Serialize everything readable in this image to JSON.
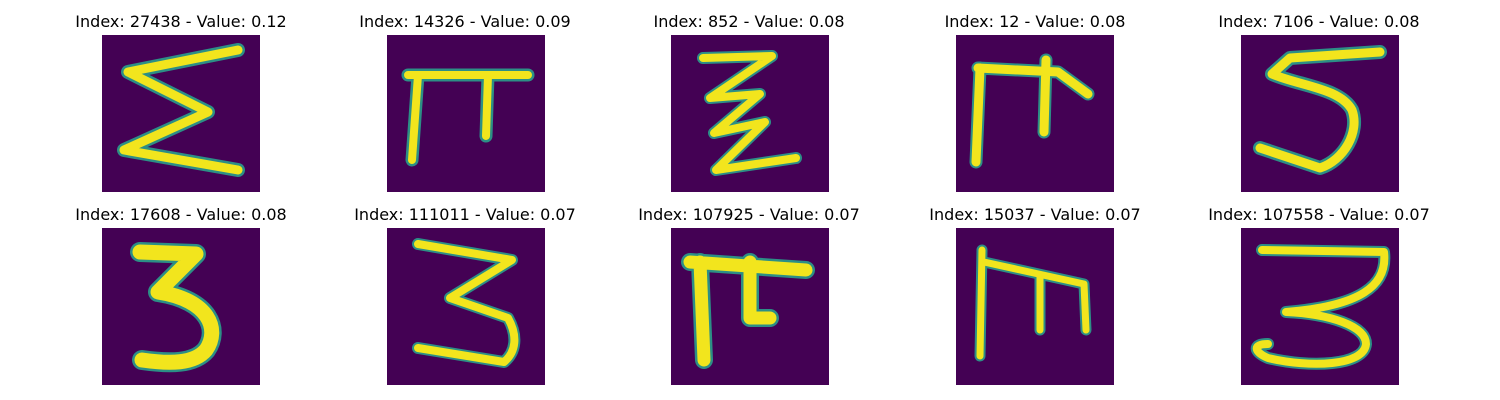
{
  "figure": {
    "panels": [
      {
        "title": "Index: 27438 - Value: 0.12",
        "index": 27438,
        "value": 0.12,
        "glyph": "sigma-like"
      },
      {
        "title": "Index: 14326 - Value: 0.09",
        "index": 14326,
        "value": 0.09,
        "glyph": "pi-like"
      },
      {
        "title": "Index: 852 - Value: 0.08",
        "index": 852,
        "value": 0.08,
        "glyph": "zigzag-z"
      },
      {
        "title": "Index: 12 - Value: 0.08",
        "index": 12,
        "value": 0.08,
        "glyph": "cross-hook"
      },
      {
        "title": "Index: 7106 - Value: 0.08",
        "index": 7106,
        "value": 0.08,
        "glyph": "digit-5"
      },
      {
        "title": "Index: 17608 - Value: 0.08",
        "index": 17608,
        "value": 0.08,
        "glyph": "bold-3"
      },
      {
        "title": "Index: 111011 - Value: 0.07",
        "index": 111011,
        "value": 0.07,
        "glyph": "thin-3"
      },
      {
        "title": "Index: 107925 - Value: 0.07",
        "index": 107925,
        "value": 0.07,
        "glyph": "thick-cross"
      },
      {
        "title": "Index: 15037 - Value: 0.07",
        "index": 15037,
        "value": 0.07,
        "glyph": "box-m"
      },
      {
        "title": "Index: 107558 - Value: 0.07",
        "index": 107558,
        "value": 0.07,
        "glyph": "loop-3"
      }
    ],
    "colors": {
      "background": "#440154",
      "foreground": "#f2e51d",
      "edge": "#2a9f8c"
    }
  }
}
